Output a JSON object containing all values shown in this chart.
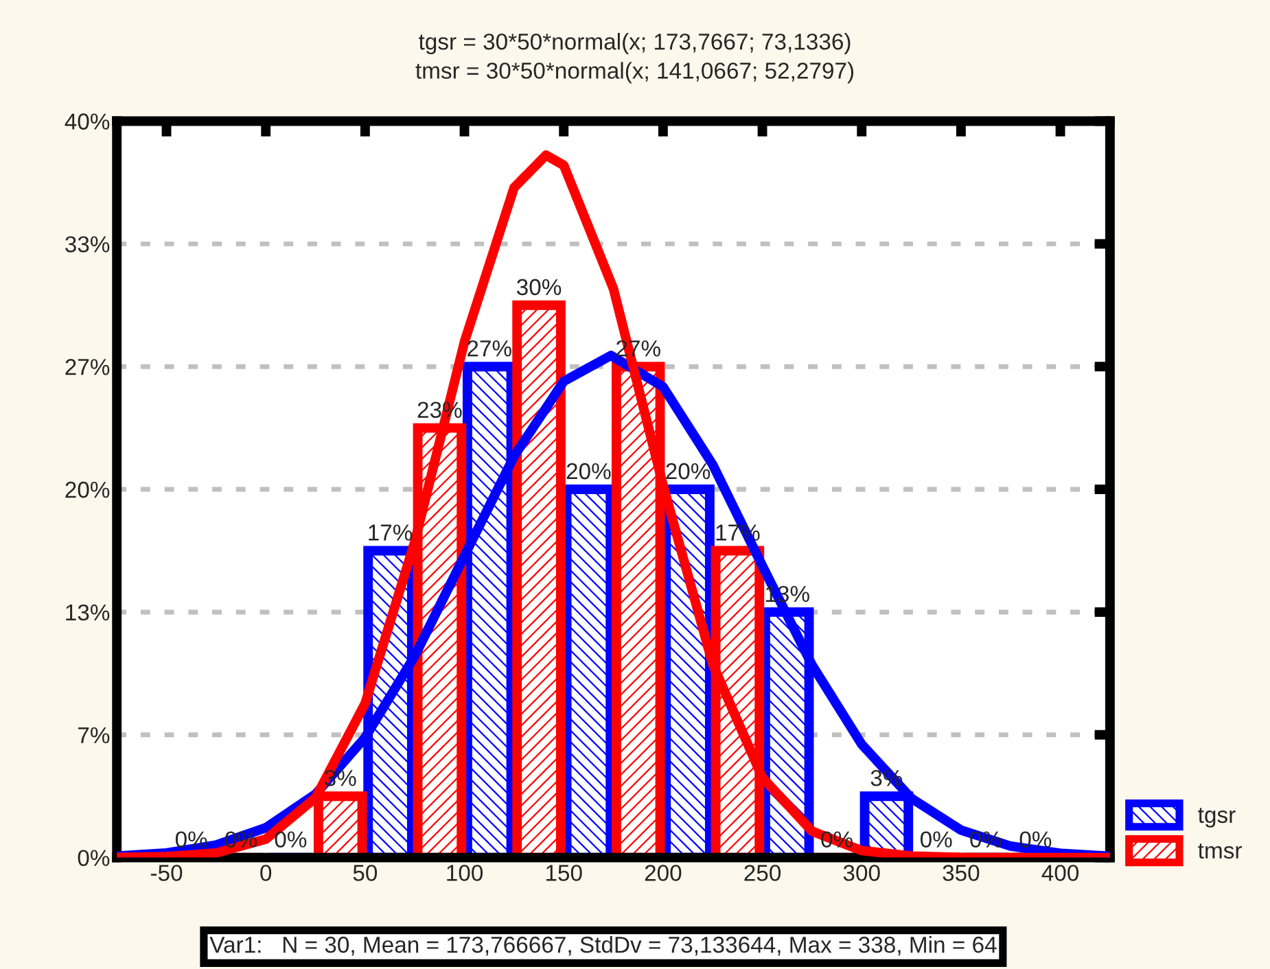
{
  "chart_data": {
    "type": "histogram",
    "title": "tgsr = 30*50*normal(x; 173,7667; 73,1336)",
    "subtitle": "tmsr = 30*50*normal(x; 141,0667; 52,2797)",
    "bins": [
      -50,
      0,
      50,
      100,
      150,
      200,
      250,
      300,
      350,
      400
    ],
    "series": [
      {
        "name": "tgsr",
        "color": "#0000ff",
        "values": [
          0,
          0,
          16.667,
          26.667,
          20,
          20,
          13.333,
          3.333,
          0
        ],
        "value_labels": [
          "0%",
          "0%",
          "17%",
          "27%",
          "20%",
          "20%",
          "13%",
          "3%",
          "0%"
        ]
      },
      {
        "name": "tmsr",
        "color": "#ff0000",
        "values": [
          0,
          3.333,
          23.333,
          30,
          26.667,
          16.667,
          0,
          0,
          0
        ],
        "value_labels": [
          "0%",
          "3%",
          "23%",
          "30%",
          "27%",
          "17%",
          "0%",
          "0%",
          "0%"
        ]
      },
      {
        "type": "line",
        "color": "#0000ff",
        "x": [
          -75,
          -50,
          -25,
          0,
          25,
          50,
          75,
          100,
          125,
          150,
          173.77,
          200,
          225,
          250,
          275,
          300,
          325,
          350,
          375,
          400,
          425
        ],
        "values": [
          0.08,
          0.25,
          0.68,
          1.62,
          3.44,
          6.52,
          10.95,
          16.39,
          21.8,
          25.87,
          27.27,
          25.57,
          21.34,
          15.84,
          10.46,
          6.15,
          3.22,
          1.49,
          0.62,
          0.23,
          0.07
        ]
      },
      {
        "type": "line",
        "color": "#ff0000",
        "x": [
          -75,
          -50,
          -25,
          0,
          25,
          50,
          75,
          100,
          125,
          141.07,
          150,
          175,
          200,
          225,
          250,
          275,
          300,
          325,
          350,
          375,
          400,
          425
        ],
        "values": [
          0.01,
          0.05,
          0.25,
          1.0,
          3.24,
          8.37,
          17.16,
          28.01,
          36.39,
          38.15,
          37.6,
          30.9,
          20.22,
          10.5,
          4.35,
          1.43,
          0.38,
          0.08,
          0.01,
          0,
          0,
          0
        ]
      }
    ],
    "xlim": [
      -75,
      425
    ],
    "xticks": [
      -50,
      0,
      50,
      100,
      150,
      200,
      250,
      300,
      350,
      400
    ],
    "ylim": [
      0,
      40
    ],
    "yticks": [
      {
        "value": 0,
        "label": "0%"
      },
      {
        "value": 6.667,
        "label": "7%"
      },
      {
        "value": 13.333,
        "label": "13%"
      },
      {
        "value": 20,
        "label": "20%"
      },
      {
        "value": 26.667,
        "label": "27%"
      },
      {
        "value": 33.333,
        "label": "33%"
      },
      {
        "value": 40,
        "label": "40%"
      }
    ],
    "grid": "y",
    "legend": "bottom right",
    "annotations": [
      "Var1:   N = 30, Mean = 173,766667, StdDv = 73,133644, Max = 338, Min = 64"
    ]
  }
}
